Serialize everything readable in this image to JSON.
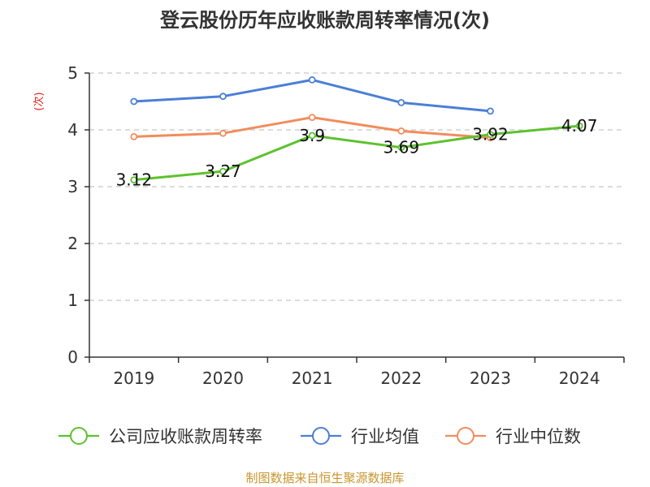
{
  "chart_data": {
    "type": "line",
    "title": "登云股份历年应收账款周转率情况(次)",
    "ylabel": "(次)",
    "xlabel": "",
    "categories": [
      "2019",
      "2020",
      "2021",
      "2022",
      "2023",
      "2024"
    ],
    "ylim": [
      0,
      5
    ],
    "yticks": [
      0,
      1,
      2,
      3,
      4,
      5
    ],
    "grid": true,
    "legend_position": "bottom",
    "series": [
      {
        "name": "公司应收账款周转率",
        "values": [
          3.12,
          3.27,
          3.9,
          3.69,
          3.92,
          4.07
        ],
        "data_labels": [
          "3.12",
          "3.27",
          "3.9",
          "3.69",
          "3.92",
          "4.07"
        ],
        "color": "#5cc22e"
      },
      {
        "name": "行业均值",
        "values": [
          4.5,
          4.59,
          4.88,
          4.48,
          4.33,
          null
        ],
        "color": "#4a7fd6"
      },
      {
        "name": "行业中位数",
        "values": [
          3.88,
          3.94,
          4.22,
          3.98,
          3.86,
          null
        ],
        "color": "#f28c5c"
      }
    ],
    "source": "制图数据来自恒生聚源数据库"
  }
}
